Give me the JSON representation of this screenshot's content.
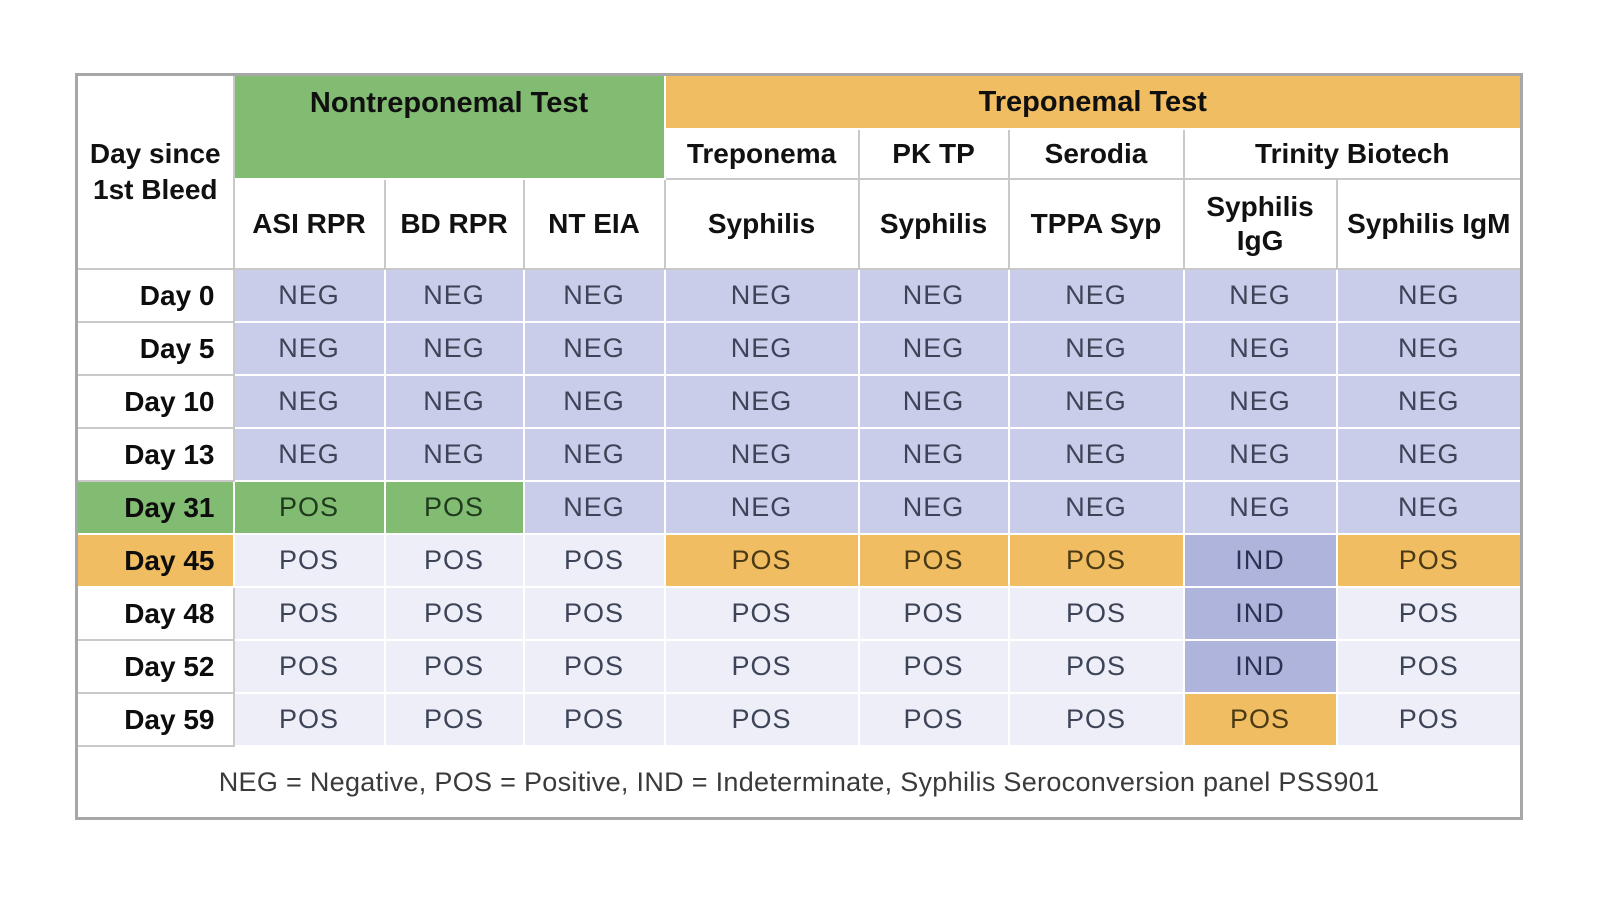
{
  "table": {
    "corner": {
      "line1": "Day since",
      "line2": "1st Bleed"
    },
    "group_headers": [
      "Nontreponemal Test",
      "Treponemal Test"
    ],
    "vendor_headers": [
      "Treponema",
      "PK TP",
      "Serodia",
      "Trinity Biotech"
    ],
    "test_headers": [
      "ASI RPR",
      "BD RPR",
      "NT EIA",
      "Syphilis",
      "Syphilis",
      "TPPA Syp",
      "Syphilis IgG",
      "Syphilis IgM"
    ],
    "rows": [
      {
        "day": "Day 0",
        "day_style": "plain",
        "cells": [
          {
            "v": "NEG",
            "s": "neg"
          },
          {
            "v": "NEG",
            "s": "neg"
          },
          {
            "v": "NEG",
            "s": "neg"
          },
          {
            "v": "NEG",
            "s": "neg"
          },
          {
            "v": "NEG",
            "s": "neg"
          },
          {
            "v": "NEG",
            "s": "neg"
          },
          {
            "v": "NEG",
            "s": "neg"
          },
          {
            "v": "NEG",
            "s": "neg"
          }
        ]
      },
      {
        "day": "Day 5",
        "day_style": "plain",
        "cells": [
          {
            "v": "NEG",
            "s": "neg"
          },
          {
            "v": "NEG",
            "s": "neg"
          },
          {
            "v": "NEG",
            "s": "neg"
          },
          {
            "v": "NEG",
            "s": "neg"
          },
          {
            "v": "NEG",
            "s": "neg"
          },
          {
            "v": "NEG",
            "s": "neg"
          },
          {
            "v": "NEG",
            "s": "neg"
          },
          {
            "v": "NEG",
            "s": "neg"
          }
        ]
      },
      {
        "day": "Day 10",
        "day_style": "plain",
        "cells": [
          {
            "v": "NEG",
            "s": "neg"
          },
          {
            "v": "NEG",
            "s": "neg"
          },
          {
            "v": "NEG",
            "s": "neg"
          },
          {
            "v": "NEG",
            "s": "neg"
          },
          {
            "v": "NEG",
            "s": "neg"
          },
          {
            "v": "NEG",
            "s": "neg"
          },
          {
            "v": "NEG",
            "s": "neg"
          },
          {
            "v": "NEG",
            "s": "neg"
          }
        ]
      },
      {
        "day": "Day 13",
        "day_style": "plain",
        "cells": [
          {
            "v": "NEG",
            "s": "neg"
          },
          {
            "v": "NEG",
            "s": "neg"
          },
          {
            "v": "NEG",
            "s": "neg"
          },
          {
            "v": "NEG",
            "s": "neg"
          },
          {
            "v": "NEG",
            "s": "neg"
          },
          {
            "v": "NEG",
            "s": "neg"
          },
          {
            "v": "NEG",
            "s": "neg"
          },
          {
            "v": "NEG",
            "s": "neg"
          }
        ]
      },
      {
        "day": "Day 31",
        "day_style": "green",
        "cells": [
          {
            "v": "POS",
            "s": "grn"
          },
          {
            "v": "POS",
            "s": "grn"
          },
          {
            "v": "NEG",
            "s": "neg"
          },
          {
            "v": "NEG",
            "s": "neg"
          },
          {
            "v": "NEG",
            "s": "neg"
          },
          {
            "v": "NEG",
            "s": "neg"
          },
          {
            "v": "NEG",
            "s": "neg"
          },
          {
            "v": "NEG",
            "s": "neg"
          }
        ]
      },
      {
        "day": "Day 45",
        "day_style": "orange",
        "cells": [
          {
            "v": "POS",
            "s": "lite"
          },
          {
            "v": "POS",
            "s": "lite"
          },
          {
            "v": "POS",
            "s": "lite"
          },
          {
            "v": "POS",
            "s": "org"
          },
          {
            "v": "POS",
            "s": "org"
          },
          {
            "v": "POS",
            "s": "org"
          },
          {
            "v": "IND",
            "s": "ind"
          },
          {
            "v": "POS",
            "s": "org"
          }
        ]
      },
      {
        "day": "Day 48",
        "day_style": "plain",
        "cells": [
          {
            "v": "POS",
            "s": "lite"
          },
          {
            "v": "POS",
            "s": "lite"
          },
          {
            "v": "POS",
            "s": "lite"
          },
          {
            "v": "POS",
            "s": "lite"
          },
          {
            "v": "POS",
            "s": "lite"
          },
          {
            "v": "POS",
            "s": "lite"
          },
          {
            "v": "IND",
            "s": "ind"
          },
          {
            "v": "POS",
            "s": "lite"
          }
        ]
      },
      {
        "day": "Day 52",
        "day_style": "plain",
        "cells": [
          {
            "v": "POS",
            "s": "lite"
          },
          {
            "v": "POS",
            "s": "lite"
          },
          {
            "v": "POS",
            "s": "lite"
          },
          {
            "v": "POS",
            "s": "lite"
          },
          {
            "v": "POS",
            "s": "lite"
          },
          {
            "v": "POS",
            "s": "lite"
          },
          {
            "v": "IND",
            "s": "ind"
          },
          {
            "v": "POS",
            "s": "lite"
          }
        ]
      },
      {
        "day": "Day 59",
        "day_style": "plain",
        "cells": [
          {
            "v": "POS",
            "s": "lite"
          },
          {
            "v": "POS",
            "s": "lite"
          },
          {
            "v": "POS",
            "s": "lite"
          },
          {
            "v": "POS",
            "s": "lite"
          },
          {
            "v": "POS",
            "s": "lite"
          },
          {
            "v": "POS",
            "s": "lite"
          },
          {
            "v": "POS",
            "s": "org"
          },
          {
            "v": "POS",
            "s": "lite"
          }
        ]
      }
    ],
    "footnote": "NEG = Negative, POS = Positive, IND = Indeterminate, Syphilis Seroconversion panel PSS901"
  },
  "colors": {
    "nontreponemal_green": "#82bb72",
    "treponemal_orange": "#f1bd62",
    "negative_lavender": "#c9cde9",
    "positive_light": "#edeef7",
    "indeterminate_purple": "#aeb4dc",
    "value_text": "#3e4457",
    "grid_gray": "#c9c9c9",
    "outer_border_gray": "#a7a7a7"
  }
}
